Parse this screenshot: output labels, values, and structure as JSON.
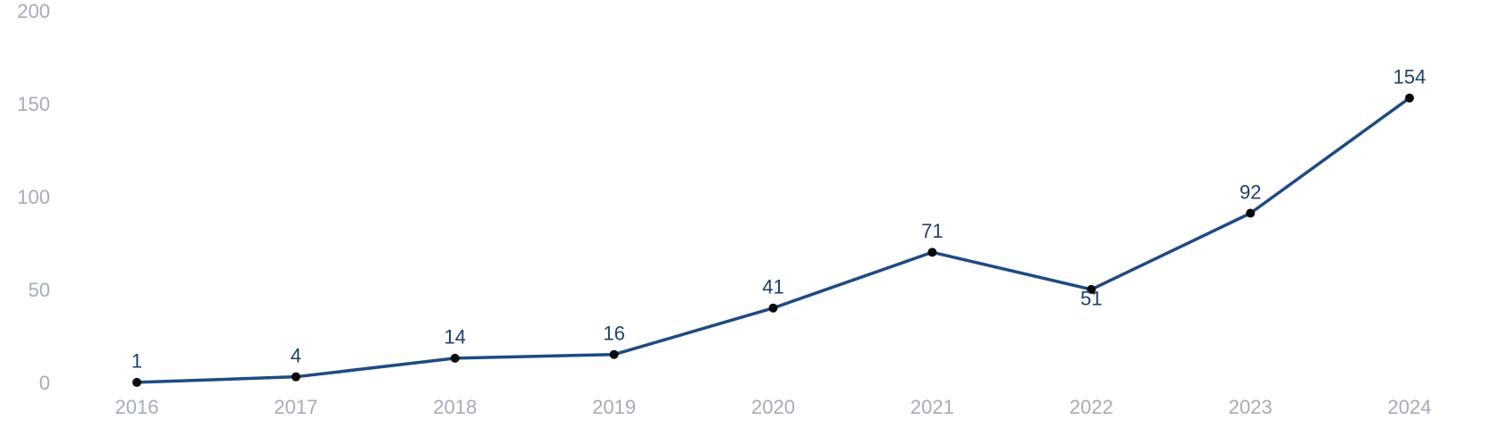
{
  "chart_data": {
    "type": "line",
    "categories": [
      "2016",
      "2017",
      "2018",
      "2019",
      "2020",
      "2021",
      "2022",
      "2023",
      "2024"
    ],
    "values": [
      1,
      4,
      14,
      16,
      41,
      71,
      51,
      92,
      154
    ],
    "color": "#1f4a82",
    "marker_color": "#0a0a0a",
    "ylim": [
      0,
      200
    ],
    "yticks": [
      0,
      50,
      100,
      150,
      200
    ],
    "grid": false
  }
}
